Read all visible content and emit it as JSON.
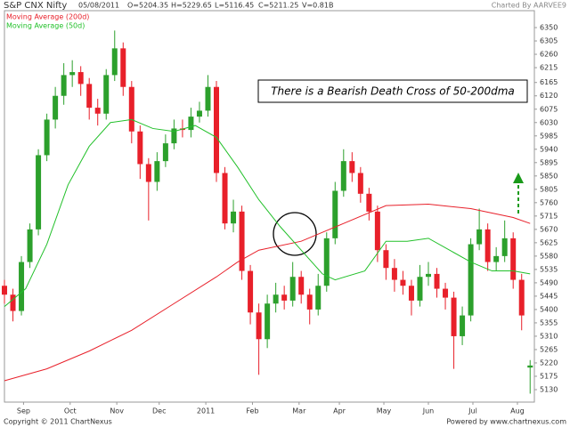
{
  "chart_data": {
    "type": "candlestick",
    "title": "S&P CNX Nifty",
    "header": [
      "05/08/2011",
      "O=5204.35",
      "H=5229.65",
      "L=5116.45",
      "C=5211.25",
      "V=0.81B"
    ],
    "credit": "Charted By AARVEE9",
    "annotation": "There is a Bearish Death Cross of 50-200dma",
    "footer_left": "Copyright © 2011 ChartNexus",
    "footer_right": "Powered by www.chartnexus.com",
    "up_color": "#2ca02c",
    "down_color": "#e8202a",
    "x": [
      0,
      4,
      8,
      12,
      16,
      20,
      24,
      28,
      32,
      36,
      40,
      44,
      48,
      52,
      56,
      60,
      64,
      68,
      72,
      76,
      80,
      84,
      88,
      92,
      96,
      100,
      104,
      108,
      112,
      116,
      120,
      124,
      128,
      132,
      136,
      140,
      144,
      148,
      152,
      156,
      160,
      164,
      168,
      172,
      176,
      180,
      184,
      188,
      192,
      196,
      200,
      204,
      208,
      212,
      216,
      220,
      224,
      228,
      232,
      236,
      240,
      244,
      248
    ],
    "open": [
      5480,
      5450,
      5395,
      5560,
      5670,
      5920,
      6040,
      6120,
      6190,
      6200,
      6160,
      6080,
      6060,
      6190,
      6280,
      6150,
      6000,
      5890,
      5830,
      5900,
      5960,
      6010,
      6005,
      6050,
      6070,
      6150,
      5860,
      5690,
      5730,
      5530,
      5390,
      5300,
      5420,
      5450,
      5430,
      5510,
      5450,
      5400,
      5480,
      5640,
      5800,
      5900,
      5860,
      5790,
      5730,
      5600,
      5540,
      5500,
      5480,
      5430,
      5510,
      5520,
      5470,
      5440,
      5310,
      5380,
      5620,
      5670,
      5560,
      5580,
      5640,
      5500,
      5204.35
    ],
    "high": [
      5500,
      5470,
      5580,
      5690,
      5940,
      6060,
      6150,
      6230,
      6240,
      6220,
      6180,
      6110,
      6210,
      6340,
      6300,
      6170,
      6020,
      5910,
      5930,
      5990,
      6040,
      6040,
      6080,
      6100,
      6190,
      6170,
      5880,
      5770,
      5750,
      5550,
      5420,
      5450,
      5490,
      5480,
      5560,
      5530,
      5470,
      5520,
      5660,
      5830,
      5940,
      5930,
      5880,
      5810,
      5750,
      5620,
      5570,
      5530,
      5500,
      5550,
      5560,
      5540,
      5490,
      5460,
      5410,
      5640,
      5740,
      5690,
      5610,
      5700,
      5660,
      5520,
      5229.65
    ],
    "low": [
      5420,
      5360,
      5380,
      5540,
      5650,
      5900,
      6010,
      6090,
      6150,
      6120,
      6040,
      6020,
      6040,
      6170,
      6120,
      5960,
      5840,
      5700,
      5800,
      5880,
      5940,
      5980,
      5980,
      6030,
      6050,
      5830,
      5670,
      5660,
      5500,
      5350,
      5180,
      5270,
      5390,
      5400,
      5410,
      5420,
      5350,
      5380,
      5460,
      5620,
      5780,
      5830,
      5760,
      5700,
      5560,
      5500,
      5460,
      5450,
      5380,
      5410,
      5480,
      5440,
      5400,
      5200,
      5280,
      5360,
      5600,
      5530,
      5530,
      5560,
      5470,
      5330,
      5116.45
    ],
    "close": [
      5450,
      5395,
      5560,
      5670,
      5920,
      6040,
      6120,
      6190,
      6200,
      6160,
      6080,
      6060,
      6190,
      6280,
      6150,
      6000,
      5890,
      5830,
      5900,
      5960,
      6010,
      6005,
      6050,
      6070,
      6150,
      5860,
      5690,
      5730,
      5530,
      5390,
      5300,
      5420,
      5450,
      5430,
      5510,
      5450,
      5400,
      5480,
      5640,
      5800,
      5900,
      5860,
      5790,
      5730,
      5600,
      5540,
      5500,
      5480,
      5430,
      5510,
      5520,
      5470,
      5440,
      5310,
      5380,
      5620,
      5670,
      5560,
      5580,
      5640,
      5500,
      5380,
      5211.25
    ],
    "series": [
      {
        "name": "Moving Average (200d)",
        "color": "#e8202a",
        "x": [
          0,
          20,
          40,
          60,
          80,
          100,
          110,
          120,
          140,
          160,
          180,
          200,
          220,
          240,
          248
        ],
        "values": [
          5160,
          5200,
          5260,
          5330,
          5420,
          5510,
          5560,
          5600,
          5630,
          5690,
          5750,
          5755,
          5740,
          5710,
          5690
        ]
      },
      {
        "name": "Moving Average (50d)",
        "color": "#22c02a",
        "x": [
          0,
          10,
          20,
          30,
          40,
          50,
          60,
          70,
          80,
          90,
          100,
          110,
          120,
          130,
          140,
          150,
          156,
          170,
          180,
          190,
          200,
          210,
          220,
          230,
          240,
          248
        ],
        "values": [
          5410,
          5470,
          5620,
          5820,
          5950,
          6030,
          6040,
          6010,
          6000,
          6020,
          5980,
          5880,
          5770,
          5680,
          5600,
          5520,
          5500,
          5530,
          5630,
          5630,
          5640,
          5600,
          5560,
          5530,
          5530,
          5520
        ]
      }
    ],
    "xlim": [
      0,
      250
    ],
    "xticks": [
      {
        "value": 9,
        "label": "Sep"
      },
      {
        "value": 31,
        "label": "Oct"
      },
      {
        "value": 53,
        "label": "Nov"
      },
      {
        "value": 73,
        "label": "Dec"
      },
      {
        "value": 95,
        "label": "2011"
      },
      {
        "value": 117,
        "label": "Feb"
      },
      {
        "value": 139,
        "label": "Mar"
      },
      {
        "value": 158,
        "label": "Apr"
      },
      {
        "value": 179,
        "label": "May"
      },
      {
        "value": 200,
        "label": "Jun"
      },
      {
        "value": 221,
        "label": "Jul"
      },
      {
        "value": 242,
        "label": "Aug"
      }
    ],
    "ylim": [
      5088,
      6407
    ],
    "yticks": [
      5130,
      5175,
      5220,
      5265,
      5310,
      5355,
      5400,
      5445,
      5490,
      5535,
      5580,
      5625,
      5670,
      5715,
      5760,
      5805,
      5850,
      5895,
      5940,
      5985,
      6030,
      6075,
      6120,
      6165,
      6215,
      6260,
      6305,
      6350
    ],
    "grid": false
  }
}
